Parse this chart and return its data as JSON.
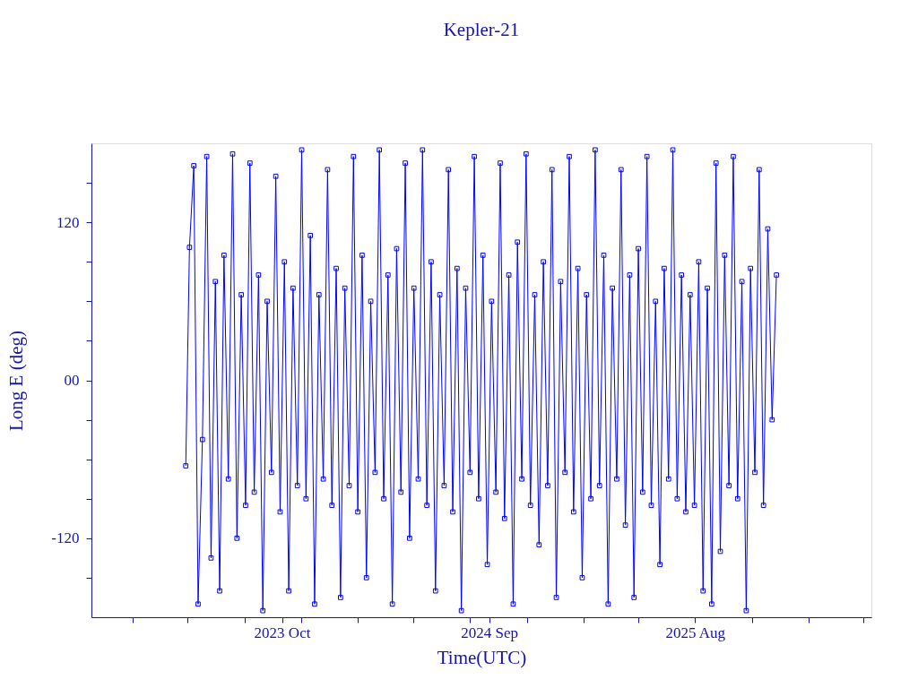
{
  "chart_data": {
    "type": "line",
    "title": "Kepler-21",
    "xlabel": "Time(UTC)",
    "ylabel": "Long E (deg)",
    "x": [
      "2023-04-28",
      "2023-05-04",
      "2023-05-11",
      "2023-05-18",
      "2023-05-25",
      "2023-06-01",
      "2023-06-08",
      "2023-06-15",
      "2023-06-22",
      "2023-06-29",
      "2023-07-06",
      "2023-07-13",
      "2023-07-20",
      "2023-07-27",
      "2023-08-03",
      "2023-08-10",
      "2023-08-17",
      "2023-08-24",
      "2023-08-31",
      "2023-09-07",
      "2023-09-14",
      "2023-09-21",
      "2023-09-28",
      "2023-10-05",
      "2023-10-12",
      "2023-10-19",
      "2023-10-26",
      "2023-11-02",
      "2023-11-09",
      "2023-11-16",
      "2023-11-23",
      "2023-11-30",
      "2023-12-07",
      "2023-12-14",
      "2023-12-21",
      "2023-12-28",
      "2024-01-04",
      "2024-01-11",
      "2024-01-18",
      "2024-01-25",
      "2024-02-01",
      "2024-02-08",
      "2024-02-15",
      "2024-02-22",
      "2024-02-29",
      "2024-03-07",
      "2024-03-14",
      "2024-03-21",
      "2024-03-28",
      "2024-04-04",
      "2024-04-11",
      "2024-04-18",
      "2024-04-25",
      "2024-05-02",
      "2024-05-09",
      "2024-05-16",
      "2024-05-23",
      "2024-05-30",
      "2024-06-06",
      "2024-06-13",
      "2024-06-20",
      "2024-06-27",
      "2024-07-04",
      "2024-07-11",
      "2024-07-18",
      "2024-07-25",
      "2024-08-01",
      "2024-08-08",
      "2024-08-15",
      "2024-08-22",
      "2024-08-29",
      "2024-09-05",
      "2024-09-12",
      "2024-09-19",
      "2024-09-26",
      "2024-10-03",
      "2024-10-10",
      "2024-10-17",
      "2024-10-24",
      "2024-10-31",
      "2024-11-07",
      "2024-11-14",
      "2024-11-21",
      "2024-11-28",
      "2024-12-05",
      "2024-12-12",
      "2024-12-19",
      "2024-12-26",
      "2025-01-02",
      "2025-01-09",
      "2025-01-16",
      "2025-01-23",
      "2025-01-30",
      "2025-02-06",
      "2025-02-13",
      "2025-02-20",
      "2025-02-27",
      "2025-03-06",
      "2025-03-13",
      "2025-03-20",
      "2025-03-27",
      "2025-04-03",
      "2025-04-10",
      "2025-04-17",
      "2025-04-24",
      "2025-05-01",
      "2025-05-08",
      "2025-05-15",
      "2025-05-22",
      "2025-05-29",
      "2025-06-05",
      "2025-06-12",
      "2025-06-19",
      "2025-06-26",
      "2025-07-03",
      "2025-07-10",
      "2025-07-17",
      "2025-07-24",
      "2025-07-31",
      "2025-08-07",
      "2025-08-14",
      "2025-08-21",
      "2025-08-28",
      "2025-09-04",
      "2025-09-11",
      "2025-09-18",
      "2025-09-25",
      "2025-10-02",
      "2025-10-09",
      "2025-10-16",
      "2025-10-23",
      "2025-10-30",
      "2025-11-06",
      "2025-11-13",
      "2025-11-20",
      "2025-11-27",
      "2025-12-04",
      "2025-12-11"
    ],
    "series": [
      {
        "color": "#0000ff",
        "values": [
          -65,
          101,
          163,
          -170,
          -45,
          170,
          -135,
          75,
          -160,
          95,
          -75,
          172,
          -120,
          65,
          -95,
          165,
          -85,
          80,
          -175,
          60,
          -70,
          155,
          -100,
          90,
          -160,
          70,
          -80,
          175,
          -90,
          110,
          -170,
          65,
          -75,
          160,
          -95,
          85,
          -165,
          70,
          -80,
          170,
          -100,
          95,
          -150,
          60,
          -70,
          175,
          -90,
          80,
          -170,
          100,
          -85,
          165,
          -120,
          70,
          -75,
          175,
          -95,
          90,
          -160,
          65,
          -80,
          160,
          -100,
          85,
          -175,
          70,
          -70,
          170,
          -90,
          95,
          -140,
          60,
          -85,
          165,
          -105,
          80,
          -170,
          105,
          -75,
          172,
          -95,
          65,
          -125,
          90,
          -80,
          160,
          -165,
          75,
          -70,
          170,
          -100,
          85,
          -150,
          65,
          -90,
          175,
          -80,
          95,
          -170,
          70,
          -75,
          160,
          -110,
          80,
          -165,
          100,
          -85,
          170,
          -95,
          60,
          -140,
          85,
          -75,
          175,
          -90,
          80,
          -100,
          65,
          -95,
          90,
          -160,
          70,
          -170,
          165,
          -130,
          95,
          -80,
          170,
          -90,
          75,
          -175,
          85,
          -70,
          160,
          -95,
          115,
          -30,
          80
        ]
      }
    ],
    "xlim": [
      "2022-11-26",
      "2026-05-14"
    ],
    "xticks": [
      {
        "value": "2023-02-01",
        "label": null
      },
      {
        "value": "2023-05-01",
        "label": null
      },
      {
        "value": "2023-08-01",
        "label": null
      },
      {
        "value": "2023-10-01",
        "label": "2023 Oct"
      },
      {
        "value": "2023-11-01",
        "label": null
      },
      {
        "value": "2024-02-01",
        "label": null
      },
      {
        "value": "2024-05-01",
        "label": null
      },
      {
        "value": "2024-08-01",
        "label": null
      },
      {
        "value": "2024-09-01",
        "label": "2024 Sep"
      },
      {
        "value": "2024-11-01",
        "label": null
      },
      {
        "value": "2025-02-01",
        "label": null
      },
      {
        "value": "2025-05-01",
        "label": null
      },
      {
        "value": "2025-08-01",
        "label": "2025 Aug"
      },
      {
        "value": "2025-11-01",
        "label": null
      },
      {
        "value": "2026-02-01",
        "label": null
      },
      {
        "value": "2026-05-01",
        "label": null
      }
    ],
    "ylim": [
      -180,
      180
    ],
    "yticks": [
      {
        "value": -150,
        "label": null
      },
      {
        "value": -120,
        "label": "-120"
      },
      {
        "value": -90,
        "label": null
      },
      {
        "value": -60,
        "label": null
      },
      {
        "value": -30,
        "label": null
      },
      {
        "value": 0,
        "label": "00"
      },
      {
        "value": 30,
        "label": null
      },
      {
        "value": 60,
        "label": null
      },
      {
        "value": 90,
        "label": null
      },
      {
        "value": 120,
        "label": "120"
      },
      {
        "value": 150,
        "label": null
      }
    ],
    "marker": "square",
    "line_style": "solid",
    "grid": false
  }
}
